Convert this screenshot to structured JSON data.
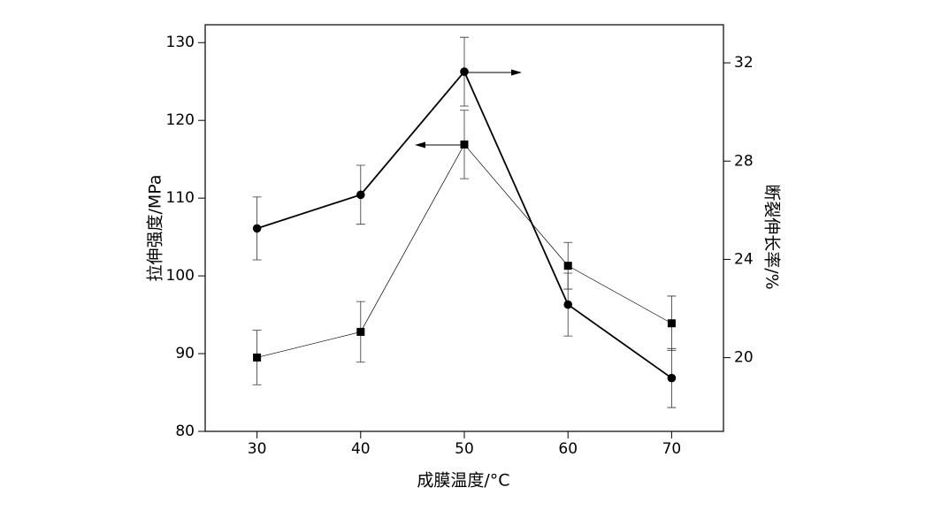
{
  "chart_data": {
    "type": "line",
    "x_label": "成膜温度/°C",
    "y_label": "拉伸强度/MPa",
    "y2_label": "断裂伸长率/%",
    "x": [
      30,
      40,
      50,
      60,
      70
    ],
    "xlim": [
      25,
      75
    ],
    "xticks": [
      30,
      40,
      50,
      60,
      70
    ],
    "ylim": [
      80,
      132.3
    ],
    "yticks": [
      80,
      90,
      100,
      110,
      120,
      130
    ],
    "y2lim": [
      17,
      33.55
    ],
    "y2ticks": [
      20,
      24,
      28,
      32
    ],
    "series": [
      {
        "color": "#000000",
        "marker": "square",
        "line_width": 0.7,
        "values": [
          89.5,
          92.8,
          116.9,
          101.3,
          93.9
        ],
        "errors": [
          3.5,
          3.9,
          4.4,
          3.0,
          3.5
        ]
      },
      {
        "color": "#000000",
        "marker": "circle",
        "line_width": 1.8,
        "axis": "y2",
        "values": [
          25.26,
          26.63,
          31.64,
          22.16,
          19.17
        ],
        "errors": [
          1.28,
          1.2,
          1.4,
          1.28,
          1.2
        ]
      }
    ]
  }
}
